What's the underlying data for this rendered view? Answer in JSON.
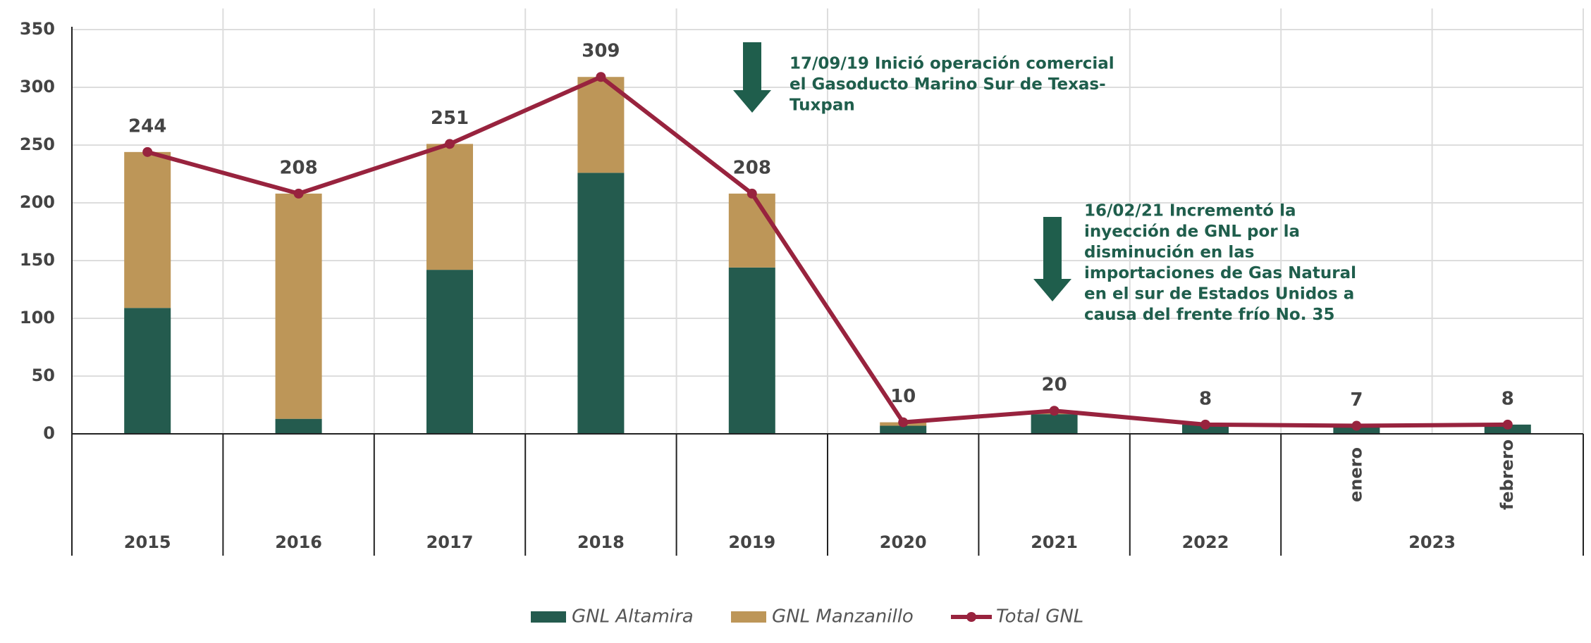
{
  "chart_data": {
    "type": "bar",
    "categories": [
      "2015",
      "2016",
      "2017",
      "2018",
      "2019",
      "2020",
      "2021",
      "2022",
      "enero",
      "febrero"
    ],
    "groups": [
      {
        "label": "2023",
        "members": [
          8,
          9
        ]
      }
    ],
    "series": [
      {
        "name": "GNL Altamira",
        "color": "#245b4e",
        "type": "bar",
        "values": [
          109,
          13,
          142,
          226,
          144,
          7,
          17,
          8,
          7,
          8
        ]
      },
      {
        "name": "GNL Manzanillo",
        "color": "#bd9658",
        "type": "bar",
        "values": [
          135,
          195,
          109,
          83,
          64,
          3,
          3,
          0,
          0,
          0
        ]
      },
      {
        "name": "Total GNL",
        "color": "#98233e",
        "type": "line",
        "values": [
          244,
          208,
          251,
          309,
          208,
          10,
          20,
          8,
          7,
          8
        ]
      }
    ],
    "ylim": [
      0,
      350
    ],
    "yticks": [
      0,
      50,
      100,
      150,
      200,
      250,
      300,
      350
    ],
    "grid": true,
    "annotations": [
      {
        "lines": [
          "17/09/19 Inició operación comercial",
          "el Gasoducto Marino Sur de Texas-",
          "Tuxpan"
        ]
      },
      {
        "lines": [
          "16/02/21 Incrementó la",
          "inyección de GNL por la",
          "disminución en las",
          "importaciones de Gas Natural",
          "en el sur de Estados Unidos a",
          "causa del frente frío No. 35"
        ]
      }
    ]
  }
}
